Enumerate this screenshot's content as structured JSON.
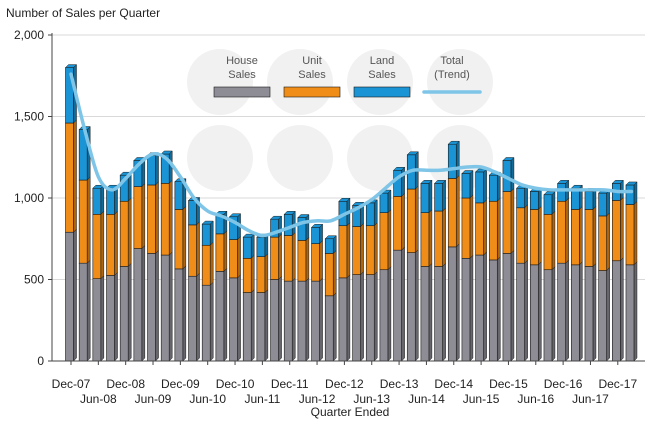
{
  "chart_data": {
    "type": "bar",
    "stacked": true,
    "title": "",
    "ylabel": "Number of Sales per Quarter",
    "xlabel": "Quarter Ended",
    "ylim": [
      0,
      2000
    ],
    "yticks": [
      0,
      500,
      1000,
      1500,
      2000
    ],
    "ytick_labels": [
      "0",
      "500",
      "1,000",
      "1,500",
      "2,000"
    ],
    "grid": "horizontal",
    "legend_position": "top-center",
    "x_tick_labels": [
      {
        "index": 0,
        "label": "Dec-07",
        "row": 1
      },
      {
        "index": 2,
        "label": "Jun-08",
        "row": 2
      },
      {
        "index": 4,
        "label": "Dec-08",
        "row": 1
      },
      {
        "index": 6,
        "label": "Jun-09",
        "row": 2
      },
      {
        "index": 8,
        "label": "Dec-09",
        "row": 1
      },
      {
        "index": 10,
        "label": "Jun-10",
        "row": 2
      },
      {
        "index": 12,
        "label": "Dec-10",
        "row": 1
      },
      {
        "index": 14,
        "label": "Jun-11",
        "row": 2
      },
      {
        "index": 16,
        "label": "Dec-11",
        "row": 1
      },
      {
        "index": 18,
        "label": "Jun-12",
        "row": 2
      },
      {
        "index": 20,
        "label": "Dec-12",
        "row": 1
      },
      {
        "index": 22,
        "label": "Jun-13",
        "row": 2
      },
      {
        "index": 24,
        "label": "Dec-13",
        "row": 1
      },
      {
        "index": 26,
        "label": "Jun-14",
        "row": 2
      },
      {
        "index": 28,
        "label": "Dec-14",
        "row": 1
      },
      {
        "index": 30,
        "label": "Jun-15",
        "row": 2
      },
      {
        "index": 32,
        "label": "Dec-15",
        "row": 1
      },
      {
        "index": 34,
        "label": "Jun-16",
        "row": 2
      },
      {
        "index": 36,
        "label": "Dec-16",
        "row": 1
      },
      {
        "index": 38,
        "label": "Jun-17",
        "row": 2
      },
      {
        "index": 40,
        "label": "Dec-17",
        "row": 1
      }
    ],
    "series": [
      {
        "name": "House Sales",
        "legend_label": [
          "House",
          "Sales"
        ],
        "color": "#8e8d96",
        "values": [
          790,
          600,
          505,
          525,
          580,
          690,
          660,
          650,
          565,
          520,
          465,
          550,
          510,
          420,
          420,
          500,
          490,
          490,
          490,
          400,
          510,
          530,
          530,
          560,
          680,
          665,
          580,
          580,
          700,
          630,
          650,
          620,
          660,
          600,
          590,
          560,
          600,
          590,
          580,
          555,
          615,
          590
        ]
      },
      {
        "name": "Unit Sales",
        "legend_label": [
          "Unit",
          "Sales"
        ],
        "color": "#f08c18",
        "values": [
          670,
          510,
          395,
          375,
          400,
          380,
          420,
          440,
          365,
          315,
          245,
          230,
          235,
          210,
          220,
          260,
          280,
          250,
          230,
          260,
          320,
          295,
          300,
          350,
          330,
          390,
          330,
          340,
          420,
          370,
          320,
          360,
          380,
          340,
          340,
          340,
          380,
          340,
          350,
          335,
          370,
          370
        ]
      },
      {
        "name": "Land Sales",
        "legend_label": [
          "Land",
          "Sales"
        ],
        "color": "#1a94d4",
        "values": [
          340,
          310,
          160,
          160,
          160,
          160,
          180,
          180,
          170,
          150,
          130,
          120,
          140,
          130,
          120,
          110,
          130,
          140,
          100,
          90,
          150,
          130,
          140,
          120,
          160,
          210,
          180,
          170,
          210,
          150,
          190,
          160,
          190,
          120,
          110,
          120,
          110,
          130,
          110,
          140,
          105,
          120
        ]
      }
    ],
    "trend": {
      "name": "Total (Trend)",
      "legend_label": [
        "Total",
        "(Trend)"
      ],
      "color": "#7fc5e8",
      "values": [
        1760,
        1420,
        1130,
        1050,
        1120,
        1210,
        1270,
        1240,
        1130,
        1000,
        920,
        890,
        850,
        800,
        770,
        790,
        820,
        850,
        860,
        860,
        900,
        940,
        990,
        1060,
        1130,
        1170,
        1170,
        1170,
        1180,
        1190,
        1190,
        1160,
        1120,
        1080,
        1060,
        1050,
        1050,
        1050,
        1050,
        1050,
        1040,
        1040
      ]
    }
  }
}
